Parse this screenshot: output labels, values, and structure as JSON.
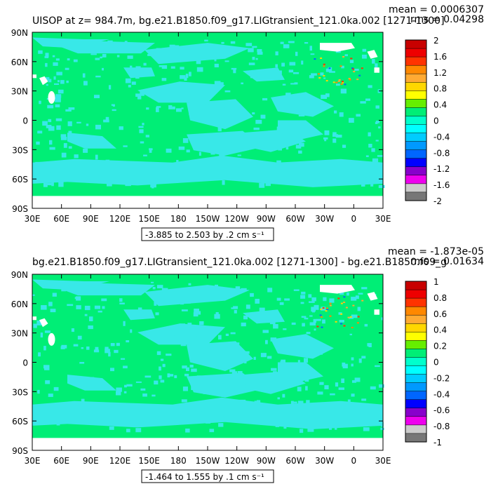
{
  "colors": {
    "ocean": "#00ee76",
    "anomaly": "#38e8e8",
    "land": "#ffffff",
    "frame": "#000000"
  },
  "chart_data": [
    {
      "type": "heatmap",
      "title": "UISOP at z= 984.7m, bg.e21.B1850.f09_g17.LIGtransient_121.0ka.002 [1271-1300]",
      "mean_label": "mean = 0.0006307",
      "rms_label": "rms = 0.04298",
      "range_label": "-3.885 to 2.503 by .2 cm s⁻¹",
      "xlabel": "",
      "ylabel": "",
      "x_ticks": [
        "30E",
        "60E",
        "90E",
        "120E",
        "150E",
        "180",
        "150W",
        "120W",
        "90W",
        "60W",
        "30W",
        "0",
        "30E"
      ],
      "y_ticks": [
        "90N",
        "60N",
        "30N",
        "0",
        "30S",
        "60S",
        "90S"
      ],
      "colorbar": {
        "levels": [
          "2",
          "1.6",
          "1.2",
          "0.8",
          "0.4",
          "0",
          "-0.4",
          "-0.8",
          "-1.2",
          "-1.6",
          "-2"
        ],
        "colors": [
          "#c80000",
          "#ee0000",
          "#ff3300",
          "#ff8800",
          "#ffaa33",
          "#ffd700",
          "#ffff00",
          "#66ee00",
          "#00ee76",
          "#00ffcc",
          "#00ffff",
          "#00ccff",
          "#0099ff",
          "#0066ff",
          "#0000ff",
          "#8800cc",
          "#ee00ee",
          "#cccccc",
          "#777777"
        ]
      },
      "scattered_values": [
        -0.6,
        0.8,
        1.2
      ]
    },
    {
      "type": "heatmap",
      "title": "bg.e21.B1850.f09_g17.LIGtransient_121.0ka.002 [1271-1300] - bg.e21.B1850.f09_g",
      "mean_label": "mean = -1.873e-05",
      "rms_label": "rms = 0.01634",
      "range_label": "-1.464 to 1.555 by .1 cm s⁻¹",
      "xlabel": "",
      "ylabel": "",
      "x_ticks": [
        "30E",
        "60E",
        "90E",
        "120E",
        "150E",
        "180",
        "150W",
        "120W",
        "90W",
        "60W",
        "30W",
        "0",
        "30E"
      ],
      "y_ticks": [
        "90N",
        "60N",
        "30N",
        "0",
        "30S",
        "60S",
        "90S"
      ],
      "colorbar": {
        "levels": [
          "1",
          "0.8",
          "0.6",
          "0.4",
          "0.2",
          "0",
          "-0.2",
          "-0.4",
          "-0.6",
          "-0.8",
          "-1"
        ],
        "colors": [
          "#c80000",
          "#ee0000",
          "#ff3300",
          "#ff8800",
          "#ffaa33",
          "#ffd700",
          "#ffff00",
          "#66ee00",
          "#00ee76",
          "#00ffcc",
          "#00ffff",
          "#00ccff",
          "#0099ff",
          "#0066ff",
          "#0000ff",
          "#8800cc",
          "#ee00ee",
          "#cccccc",
          "#777777"
        ]
      },
      "scattered_values": [
        -0.3,
        0.4,
        0.6
      ]
    }
  ]
}
